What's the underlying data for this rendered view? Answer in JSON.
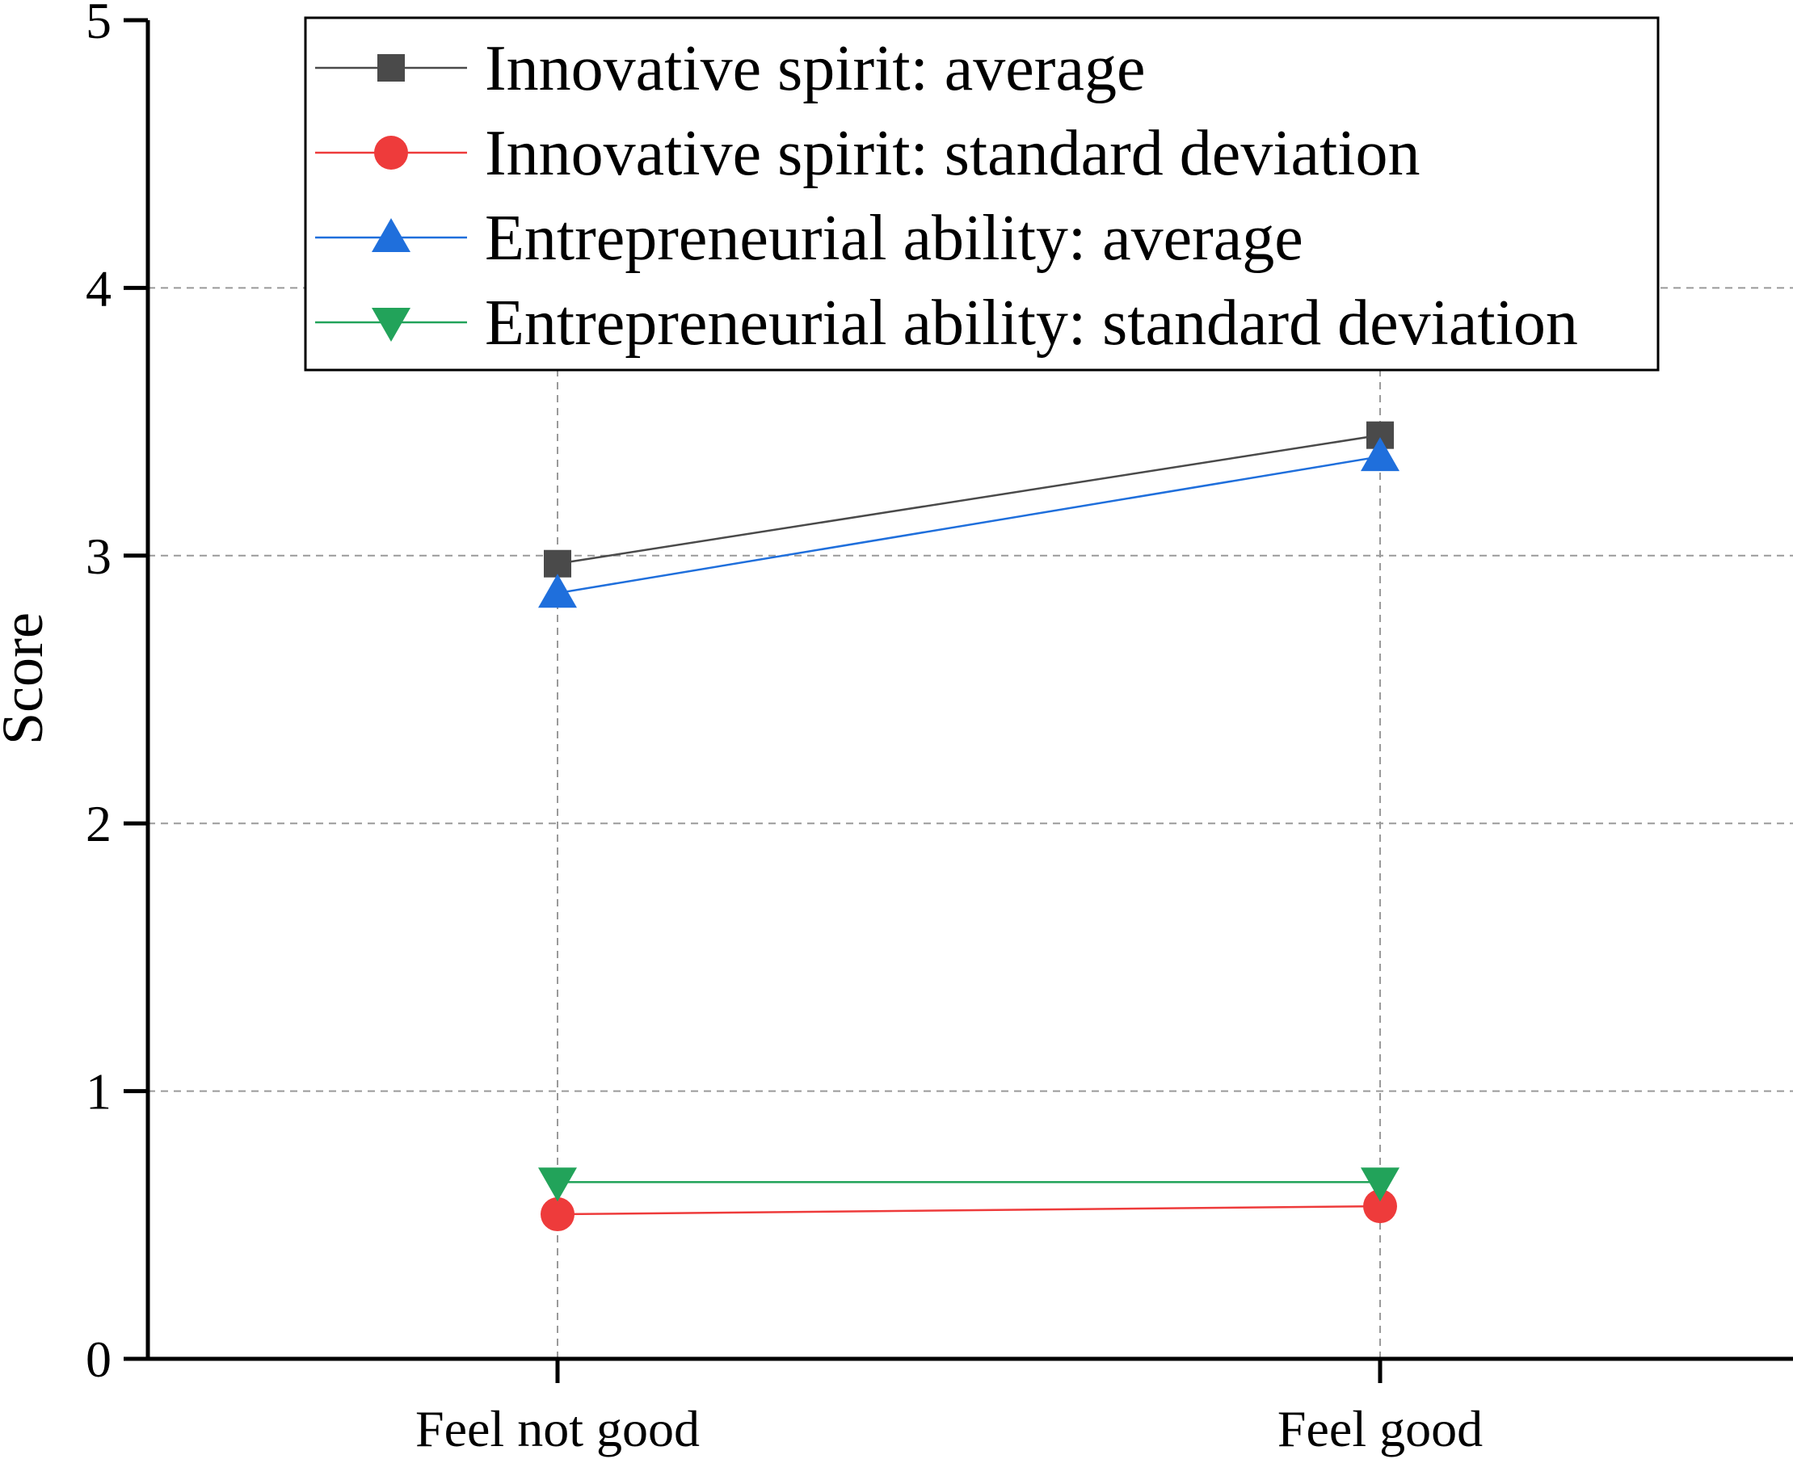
{
  "chart_data": {
    "type": "line",
    "title": "",
    "xlabel": "",
    "ylabel": "Score",
    "ylim": [
      0,
      5
    ],
    "yticks": [
      "0",
      "1",
      "2",
      "3",
      "4",
      "5"
    ],
    "categories": [
      "Feel not good",
      "Feel good"
    ],
    "grid": true,
    "legend_position": "top",
    "series": [
      {
        "name": "Innovative spirit: average",
        "values": [
          2.97,
          3.45
        ],
        "color": "#4a4a4a",
        "marker": "square"
      },
      {
        "name": "Innovative spirit: standard deviation",
        "values": [
          0.54,
          0.57
        ],
        "color": "#ee3b3b",
        "marker": "circle"
      },
      {
        "name": "Entrepreneurial ability: average",
        "values": [
          2.86,
          3.37
        ],
        "color": "#1f6fdc",
        "marker": "triangle-up"
      },
      {
        "name": "Entrepreneurial ability: standard deviation",
        "values": [
          0.66,
          0.66
        ],
        "color": "#22a35a",
        "marker": "triangle-down"
      }
    ]
  }
}
